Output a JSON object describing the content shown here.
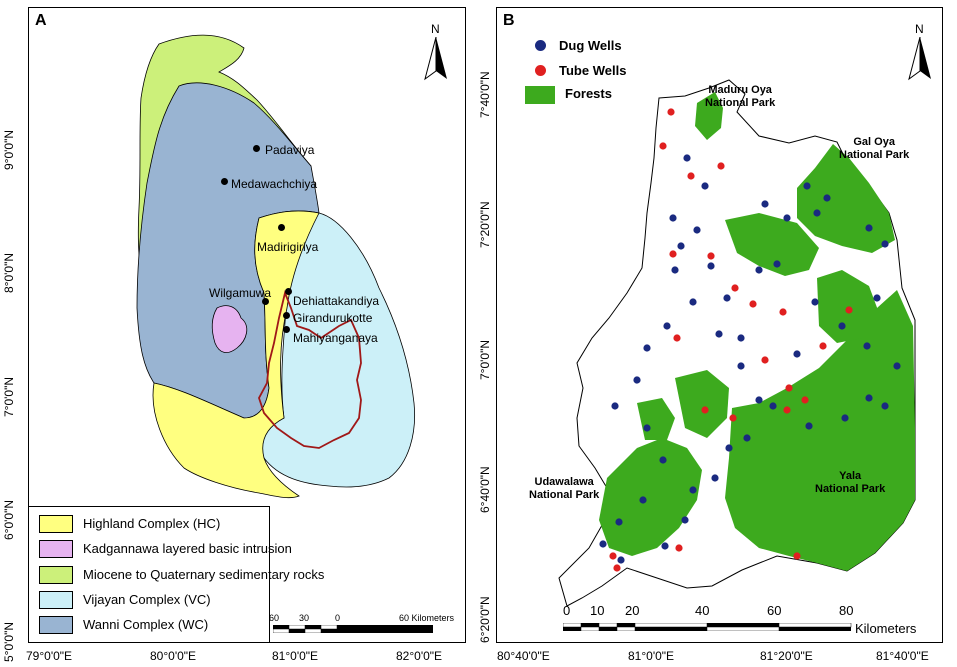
{
  "panel_a": {
    "letter": "A",
    "north": "N",
    "y_ticks": [
      "9°0'0\"N",
      "8°0'0\"N",
      "7°0'0\"N",
      "6°0'0\"N",
      "5°0'0\"N"
    ],
    "x_ticks": [
      "79°0'0\"E",
      "80°0'0\"E",
      "81°0'0\"E",
      "82°0'0\"E"
    ],
    "places": [
      "Padaviya",
      "Medawachchiya",
      "Madirigiriya",
      "Wilgamuwa",
      "Dehiattakandiya",
      "Girandurukotte",
      "Mahiyanganaya"
    ],
    "legend": [
      {
        "label": "Highland Complex (HC)",
        "color": "#ffff80"
      },
      {
        "label": "Kadgannawa layered basic intrusion",
        "color": "#e6b3f0"
      },
      {
        "label": "Miocene to Quaternary sedimentary rocks",
        "color": "#ccf07a"
      },
      {
        "label": "Vijayan Complex (VC)",
        "color": "#ccf0f8"
      },
      {
        "label": "Wanni Complex (WC)",
        "color": "#99b4d2"
      }
    ],
    "scale": {
      "labels": [
        "60",
        "30",
        "0",
        "60 Kilometers"
      ]
    }
  },
  "panel_b": {
    "letter": "B",
    "north": "N",
    "y_ticks": [
      "7°40'0\"N",
      "7°20'0\"N",
      "7°0'0\"N",
      "6°40'0\"N",
      "6°20'0\"N"
    ],
    "x_ticks": [
      "80°40'0\"E",
      "81°0'0\"E",
      "81°20'0\"E",
      "81°40'0\"E"
    ],
    "legend": [
      {
        "label": "Dug Wells",
        "color": "#1a2a80"
      },
      {
        "label": "Tube Wells",
        "color": "#e02020"
      },
      {
        "label": "Forests",
        "color": "#3daa1e"
      }
    ],
    "park_labels": [
      {
        "line1": "Maduru Oya",
        "line2": "National Park"
      },
      {
        "line1": "Gal Oya",
        "line2": "National Park"
      },
      {
        "line1": "Udawalawa",
        "line2": "National Park"
      },
      {
        "line1": "Yala",
        "line2": "National Park"
      }
    ],
    "scale": {
      "labels": [
        "0",
        "10",
        "20",
        "40",
        "60",
        "80",
        "Kilometers"
      ]
    }
  }
}
